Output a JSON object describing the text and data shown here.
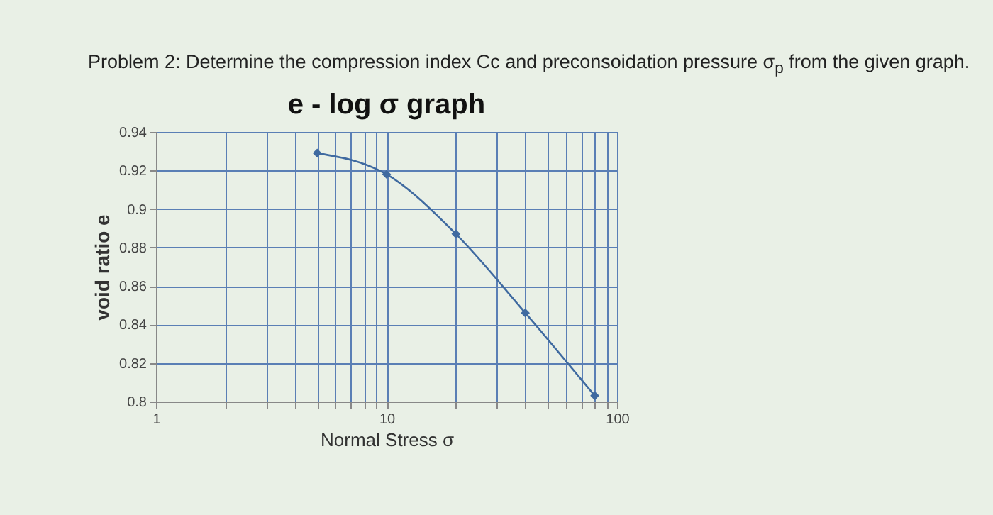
{
  "chart_data": {
    "type": "line",
    "title": "e - log σ graph",
    "annotations": [
      "Problem 2: Determine the compression index Cc and preconsoidation pressure σ$_{p}$ from the given graph."
    ],
    "xlabel": "Normal Stress σ",
    "ylabel": "void ratio e",
    "x": [
      5,
      10,
      20,
      40,
      80
    ],
    "series": [
      {
        "color": "#3f6aa0",
        "values": [
          0.929,
          0.918,
          0.887,
          0.846,
          0.803
        ]
      }
    ],
    "log": "x",
    "xlim": [
      1,
      100
    ],
    "xticks": [
      1,
      {
        "value": 2,
        "label": null
      },
      {
        "value": 3,
        "label": null
      },
      {
        "value": 4,
        "label": null
      },
      {
        "value": 5,
        "label": null
      },
      {
        "value": 6,
        "label": null
      },
      {
        "value": 7,
        "label": null
      },
      {
        "value": 8,
        "label": null
      },
      {
        "value": 9,
        "label": null
      },
      10,
      {
        "value": 20,
        "label": null
      },
      {
        "value": 30,
        "label": null
      },
      {
        "value": 40,
        "label": null
      },
      {
        "value": 50,
        "label": null
      },
      {
        "value": 60,
        "label": null
      },
      {
        "value": 70,
        "label": null
      },
      {
        "value": 80,
        "label": null
      },
      {
        "value": 90,
        "label": null
      },
      100
    ],
    "ylim": [
      0.8,
      0.94
    ],
    "yticks": [
      0.8,
      0.82,
      0.84,
      0.86,
      0.88,
      0.9,
      0.92,
      0.94
    ],
    "grid": true,
    "marker": "diamond",
    "line_style": "solid"
  }
}
